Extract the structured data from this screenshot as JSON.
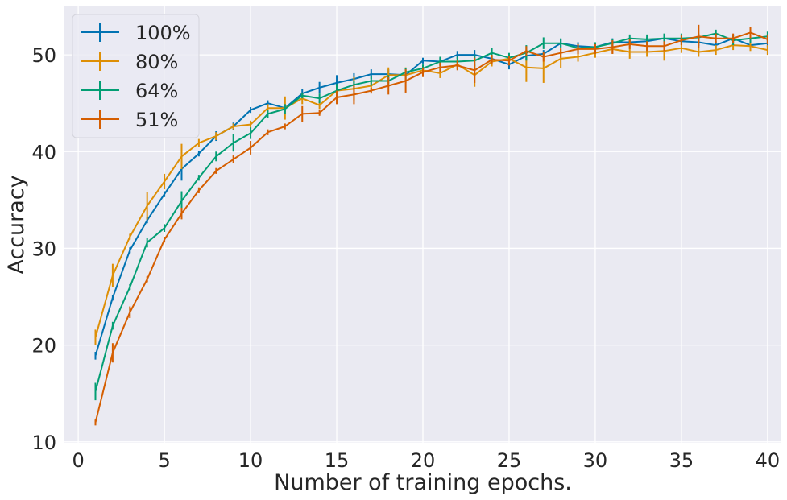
{
  "chart_data": {
    "type": "line",
    "title": "",
    "xlabel": "Number of training epochs.",
    "ylabel": "Accuracy",
    "xlim": [
      -0.8,
      40.8
    ],
    "ylim": [
      9.9,
      55
    ],
    "xticks": [
      0,
      5,
      10,
      15,
      20,
      25,
      30,
      35,
      40
    ],
    "yticks": [
      10,
      20,
      30,
      40,
      50
    ],
    "grid": true,
    "background": "#EAEAF2",
    "legend_position": "top-left",
    "x": [
      1,
      2,
      3,
      4,
      5,
      6,
      7,
      8,
      9,
      10,
      11,
      12,
      13,
      14,
      15,
      16,
      17,
      18,
      19,
      20,
      21,
      22,
      23,
      24,
      25,
      26,
      27,
      28,
      29,
      30,
      31,
      32,
      33,
      34,
      35,
      36,
      37,
      38,
      39,
      40
    ],
    "series": [
      {
        "name": "100%",
        "color": "#0173B2",
        "values": [
          18.9,
          24.9,
          29.8,
          32.9,
          35.6,
          38.2,
          39.8,
          41.6,
          42.6,
          44.3,
          45.0,
          44.5,
          46.0,
          46.6,
          47.1,
          47.5,
          48.0,
          48.0,
          47.9,
          49.4,
          49.3,
          50.0,
          50.0,
          49.6,
          49.0,
          49.9,
          50.1,
          51.2,
          50.9,
          50.8,
          51.3,
          51.3,
          51.4,
          51.7,
          51.4,
          51.3,
          51.0,
          51.7,
          51.0,
          51.2
        ],
        "errors": [
          0.4,
          0.3,
          0.3,
          0.3,
          0.3,
          1.2,
          0.3,
          0.5,
          0.4,
          0.3,
          0.3,
          0.4,
          0.5,
          0.6,
          0.8,
          0.6,
          0.5,
          0.5,
          0.5,
          0.3,
          0.4,
          0.4,
          0.5,
          0.4,
          0.5,
          0.4,
          0.4,
          0.4,
          0.4,
          0.4,
          0.4,
          0.4,
          0.4,
          0.4,
          0.4,
          0.4,
          0.4,
          0.4,
          0.4,
          0.4
        ]
      },
      {
        "name": "80%",
        "color": "#DE8F05",
        "values": [
          20.8,
          27.2,
          31.2,
          34.4,
          36.9,
          39.5,
          40.9,
          41.6,
          42.6,
          42.8,
          44.5,
          44.5,
          45.5,
          44.8,
          46.3,
          46.5,
          46.8,
          47.9,
          47.9,
          48.4,
          48.1,
          49.0,
          47.9,
          49.3,
          49.6,
          48.7,
          48.6,
          49.6,
          49.8,
          50.2,
          50.6,
          50.3,
          50.3,
          50.4,
          50.7,
          50.3,
          50.5,
          51.0,
          50.9,
          50.5
        ],
        "errors": [
          0.8,
          1.2,
          0.3,
          1.4,
          0.8,
          1.3,
          0.4,
          0.4,
          0.3,
          0.4,
          0.4,
          1.2,
          0.6,
          0.4,
          0.6,
          1.2,
          0.6,
          0.8,
          0.8,
          0.4,
          0.5,
          0.5,
          1.2,
          0.5,
          0.5,
          1.5,
          1.5,
          1.0,
          0.5,
          0.5,
          0.5,
          0.7,
          0.5,
          1.0,
          0.5,
          0.5,
          0.5,
          0.5,
          0.5,
          0.5
        ]
      },
      {
        "name": "64%",
        "color": "#029E73",
        "values": [
          15.2,
          22.0,
          26.0,
          30.6,
          32.1,
          34.9,
          37.3,
          39.5,
          40.9,
          41.9,
          43.9,
          44.4,
          45.8,
          45.5,
          46.3,
          46.9,
          47.3,
          47.3,
          48.2,
          48.6,
          49.3,
          49.3,
          49.4,
          50.2,
          49.7,
          50.2,
          51.2,
          51.2,
          50.7,
          50.8,
          51.2,
          51.7,
          51.6,
          51.7,
          51.7,
          51.8,
          52.2,
          51.5,
          51.7,
          51.9
        ],
        "errors": [
          0.9,
          0.4,
          0.3,
          0.5,
          0.4,
          1.0,
          0.3,
          0.5,
          0.9,
          0.6,
          0.4,
          0.5,
          0.3,
          0.5,
          0.7,
          0.4,
          0.5,
          0.6,
          0.4,
          0.4,
          0.5,
          0.5,
          0.6,
          0.5,
          0.5,
          0.8,
          0.6,
          0.5,
          0.4,
          0.5,
          0.4,
          0.4,
          0.5,
          0.5,
          0.5,
          0.4,
          0.4,
          0.5,
          0.5,
          0.5
        ]
      },
      {
        "name": "51%",
        "color": "#D55E00",
        "values": [
          12.0,
          19.2,
          23.4,
          26.8,
          30.9,
          33.6,
          36.0,
          38.0,
          39.2,
          40.4,
          42.0,
          42.6,
          43.9,
          44.0,
          45.6,
          45.9,
          46.3,
          46.8,
          47.3,
          48.2,
          48.7,
          48.9,
          48.4,
          49.5,
          49.4,
          50.4,
          49.8,
          50.2,
          50.6,
          50.6,
          50.8,
          51.1,
          50.9,
          50.9,
          51.5,
          51.9,
          51.7,
          51.7,
          52.3,
          51.6
        ],
        "errors": [
          0.3,
          1.0,
          0.6,
          0.3,
          0.3,
          0.6,
          0.3,
          0.3,
          0.4,
          0.7,
          0.3,
          0.3,
          0.8,
          0.3,
          0.7,
          1.0,
          0.3,
          0.9,
          1.2,
          0.5,
          0.5,
          0.5,
          1.3,
          0.5,
          0.5,
          0.5,
          0.5,
          0.5,
          0.5,
          0.5,
          0.7,
          0.5,
          0.5,
          0.5,
          0.5,
          1.2,
          0.5,
          0.5,
          0.6,
          0.5
        ]
      }
    ]
  }
}
